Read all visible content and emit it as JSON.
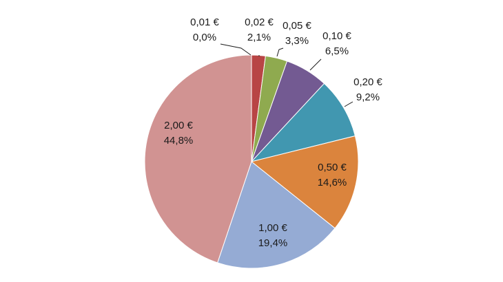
{
  "chart_data": {
    "type": "pie",
    "title": "",
    "slices": [
      {
        "label": "0,01 €",
        "percent_label": "0,0%",
        "value": 0.0,
        "color": "#c0504d"
      },
      {
        "label": "0,02 €",
        "percent_label": "2,1%",
        "value": 2.1,
        "color": "#b84545"
      },
      {
        "label": "0,05 €",
        "percent_label": "3,3%",
        "value": 3.3,
        "color": "#8faa4f"
      },
      {
        "label": "0,10 €",
        "percent_label": "6,5%",
        "value": 6.5,
        "color": "#735a92"
      },
      {
        "label": "0,20 €",
        "percent_label": "9,2%",
        "value": 9.2,
        "color": "#4197b0"
      },
      {
        "label": "0,50 €",
        "percent_label": "14,6%",
        "value": 14.6,
        "color": "#db843d"
      },
      {
        "label": "1,00 €",
        "percent_label": "19,4%",
        "value": 19.4,
        "color": "#95abd4"
      },
      {
        "label": "2,00 €",
        "percent_label": "44,8%",
        "value": 44.8,
        "color": "#d19392"
      }
    ],
    "start_angle_deg": 0,
    "direction": "clockwise",
    "legend": "none"
  }
}
